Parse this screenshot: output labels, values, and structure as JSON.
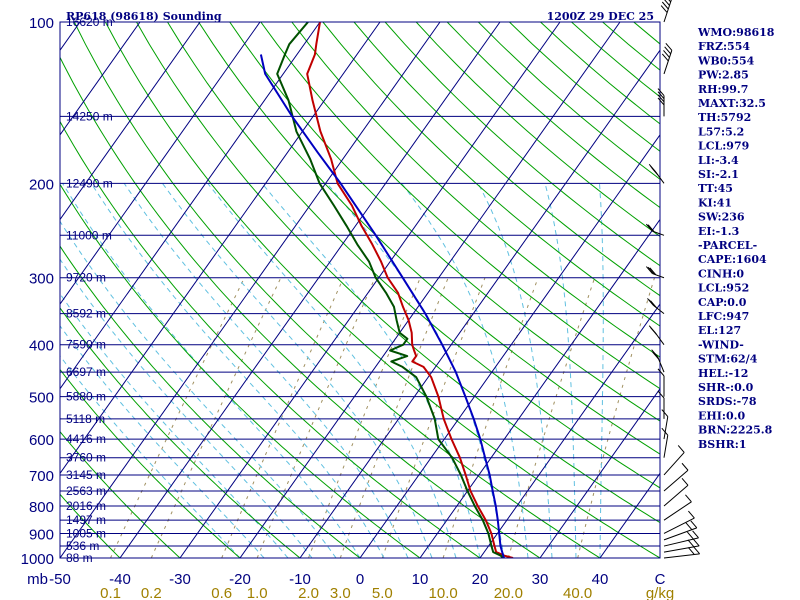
{
  "chart_data": {
    "type": "line",
    "title": "RP618 (98618) Sounding",
    "valid_time": "1200Z 29 DEC 25",
    "x_axis": {
      "label_left": "mb",
      "ticks": [
        "-50",
        "-40",
        "-30",
        "-20",
        "-10",
        "0",
        "10",
        "20",
        "30",
        "40",
        "C"
      ],
      "tick_values": [
        -50,
        -40,
        -30,
        -20,
        -10,
        0,
        10,
        20,
        30,
        40,
        50
      ],
      "xlim": [
        -50,
        50
      ]
    },
    "y_axis": {
      "scale": "log",
      "ticks": [
        "100",
        "200",
        "300",
        "400",
        "500",
        "600",
        "700",
        "800",
        "900",
        "1000"
      ],
      "tick_values": [
        100,
        200,
        300,
        400,
        500,
        600,
        700,
        800,
        900,
        1000
      ],
      "ylim": [
        1000,
        100
      ]
    },
    "mixing_ratio_labels": [
      "0.1",
      "0.2",
      "0.6",
      "1.0",
      "2.0",
      "3.0",
      "5.0",
      "10.0",
      "20.0",
      "40.0",
      "g/kg"
    ],
    "mixing_ratio_values": [
      0.1,
      0.2,
      0.6,
      1.0,
      2.0,
      3.0,
      5.0,
      10.0,
      20.0,
      40.0
    ],
    "height_levels": [
      {
        "p": 100,
        "label": "16620 m"
      },
      {
        "p": 150,
        "label": "14250 m"
      },
      {
        "p": 200,
        "label": "12490 m"
      },
      {
        "p": 250,
        "label": "11000 m"
      },
      {
        "p": 300,
        "label": "9720 m"
      },
      {
        "p": 350,
        "label": "8592 m"
      },
      {
        "p": 400,
        "label": "7590 m"
      },
      {
        "p": 450,
        "label": "6697 m"
      },
      {
        "p": 500,
        "label": "5880 m"
      },
      {
        "p": 550,
        "label": "5118 m"
      },
      {
        "p": 600,
        "label": "4416 m"
      },
      {
        "p": 650,
        "label": "3760 m"
      },
      {
        "p": 700,
        "label": "3145 m"
      },
      {
        "p": 750,
        "label": "2563 m"
      },
      {
        "p": 800,
        "label": "2016 m"
      },
      {
        "p": 850,
        "label": "1497 m"
      },
      {
        "p": 900,
        "label": "1005 m"
      },
      {
        "p": 950,
        "label": "536 m"
      },
      {
        "p": 1000,
        "label": "88 m"
      }
    ],
    "series": [
      {
        "key": "temperature",
        "color": "#c00000",
        "points": [
          [
            1000,
            25.5
          ],
          [
            990,
            23.8
          ],
          [
            975,
            22.0
          ],
          [
            950,
            21.0
          ],
          [
            900,
            19.0
          ],
          [
            850,
            16.5
          ],
          [
            800,
            13.5
          ],
          [
            750,
            10.5
          ],
          [
            700,
            7.8
          ],
          [
            650,
            4.8
          ],
          [
            600,
            1.2
          ],
          [
            550,
            -2.5
          ],
          [
            500,
            -6.0
          ],
          [
            460,
            -9.5
          ],
          [
            440,
            -12.0
          ],
          [
            430,
            -14.5
          ],
          [
            420,
            -14.5
          ],
          [
            410,
            -15.5
          ],
          [
            400,
            -16.5
          ],
          [
            380,
            -18.0
          ],
          [
            360,
            -20.0
          ],
          [
            340,
            -22.5
          ],
          [
            320,
            -25.0
          ],
          [
            300,
            -28.5
          ],
          [
            280,
            -31.5
          ],
          [
            260,
            -35.0
          ],
          [
            240,
            -39.0
          ],
          [
            220,
            -43.0
          ],
          [
            200,
            -48.0
          ],
          [
            180,
            -52.0
          ],
          [
            160,
            -57.0
          ],
          [
            140,
            -62.0
          ],
          [
            125,
            -66.0
          ],
          [
            115,
            -67.0
          ],
          [
            110,
            -68.0
          ],
          [
            100,
            -70.0
          ]
        ]
      },
      {
        "key": "dewpoint",
        "color": "#005000",
        "points": [
          [
            1000,
            23.8
          ],
          [
            990,
            23.2
          ],
          [
            975,
            21.5
          ],
          [
            950,
            20.5
          ],
          [
            900,
            18.5
          ],
          [
            850,
            16.0
          ],
          [
            800,
            13.0
          ],
          [
            750,
            10.0
          ],
          [
            700,
            7.0
          ],
          [
            650,
            3.5
          ],
          [
            600,
            -1.0
          ],
          [
            550,
            -4.0
          ],
          [
            500,
            -8.0
          ],
          [
            460,
            -12.0
          ],
          [
            440,
            -15.5
          ],
          [
            430,
            -18.0
          ],
          [
            420,
            -16.0
          ],
          [
            410,
            -19.5
          ],
          [
            400,
            -18.0
          ],
          [
            390,
            -18.0
          ],
          [
            380,
            -20.0
          ],
          [
            360,
            -22.0
          ],
          [
            340,
            -24.0
          ],
          [
            320,
            -27.0
          ],
          [
            300,
            -30.5
          ],
          [
            280,
            -33.5
          ],
          [
            260,
            -37.5
          ],
          [
            240,
            -41.5
          ],
          [
            220,
            -46.0
          ],
          [
            200,
            -51.0
          ],
          [
            180,
            -55.5
          ],
          [
            160,
            -61.0
          ],
          [
            140,
            -66.0
          ],
          [
            125,
            -71.0
          ],
          [
            115,
            -72.0
          ],
          [
            110,
            -72.5
          ],
          [
            100,
            -72.0
          ]
        ]
      },
      {
        "key": "parcel",
        "color": "#0000c0",
        "points": [
          [
            1000,
            24.0
          ],
          [
            975,
            23.0
          ],
          [
            950,
            22.0
          ],
          [
            900,
            20.3
          ],
          [
            850,
            18.5
          ],
          [
            800,
            16.5
          ],
          [
            750,
            14.2
          ],
          [
            700,
            11.8
          ],
          [
            650,
            9.0
          ],
          [
            600,
            6.0
          ],
          [
            550,
            2.5
          ],
          [
            500,
            -1.5
          ],
          [
            450,
            -6.0
          ],
          [
            400,
            -11.5
          ],
          [
            350,
            -18.0
          ],
          [
            300,
            -26.0
          ],
          [
            250,
            -35.5
          ],
          [
            200,
            -47.5
          ],
          [
            175,
            -55.0
          ],
          [
            150,
            -63.5
          ],
          [
            125,
            -73.0
          ],
          [
            115,
            -76.0
          ]
        ]
      }
    ],
    "wind_barbs": [
      {
        "p": 1000,
        "dir": 80,
        "spd": 15
      },
      {
        "p": 975,
        "dir": 75,
        "spd": 15
      },
      {
        "p": 950,
        "dir": 70,
        "spd": 15
      },
      {
        "p": 925,
        "dir": 60,
        "spd": 15
      },
      {
        "p": 900,
        "dir": 50,
        "spd": 10
      },
      {
        "p": 850,
        "dir": 40,
        "spd": 10
      },
      {
        "p": 800,
        "dir": 30,
        "spd": 10
      },
      {
        "p": 750,
        "dir": 30,
        "spd": 10
      },
      {
        "p": 700,
        "dir": 20,
        "spd": 5
      },
      {
        "p": 650,
        "dir": 340,
        "spd": 5
      },
      {
        "p": 600,
        "dir": 340,
        "spd": 5
      },
      {
        "p": 550,
        "dir": 330,
        "spd": 10
      },
      {
        "p": 500,
        "dir": 330,
        "spd": 10
      },
      {
        "p": 450,
        "dir": 310,
        "spd": 15
      },
      {
        "p": 400,
        "dir": 300,
        "spd": 20
      },
      {
        "p": 350,
        "dir": 290,
        "spd": 25
      },
      {
        "p": 300,
        "dir": 280,
        "spd": 25
      },
      {
        "p": 250,
        "dir": 280,
        "spd": 20
      },
      {
        "p": 200,
        "dir": 300,
        "spd": 25
      },
      {
        "p": 150,
        "dir": 330,
        "spd": 35
      },
      {
        "p": 125,
        "dir": 350,
        "spd": 40
      },
      {
        "p": 100,
        "dir": 350,
        "spd": 45
      }
    ],
    "indices": [
      "WMO:98618",
      "FRZ:554",
      "WB0:554",
      "PW:2.85",
      "RH:99.7",
      "MAXT:32.5",
      "TH:5792",
      "L57:5.2",
      "LCL:979",
      "LI:-3.4",
      "SI:-2.1",
      "TT:45",
      "KI:41",
      "SW:236",
      "EI:-1.3",
      "-PARCEL-",
      "CAPE:1604",
      "CINH:0",
      "LCL:952",
      "CAP:0.0",
      "LFC:947",
      "EL:127",
      "-WIND-",
      "STM:62/4",
      "HEL:-12",
      "SHR-:0.0",
      "SRDS:-78",
      "EHI:0.0",
      "BRN:2225.8",
      "BSHR:1"
    ],
    "colors": {
      "frame": "#000080",
      "isobar": "#000080",
      "isotherm": "#000080",
      "dry_adiabat": "#00a000",
      "moist_adiabat": "#60c0e0",
      "mixing_ratio": "#a09060"
    }
  }
}
